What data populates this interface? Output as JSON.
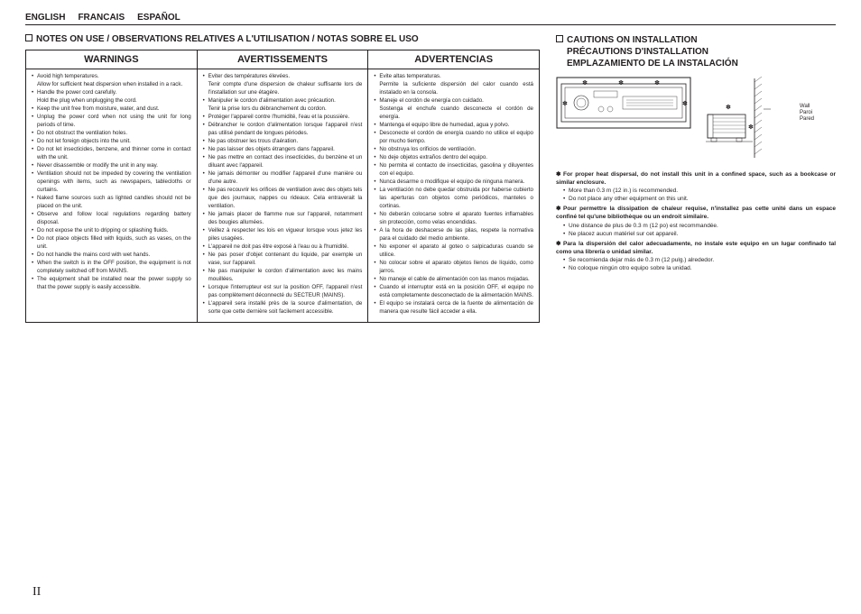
{
  "lang": {
    "en": "ENGLISH",
    "fr": "FRANCAIS",
    "es": "ESPAÑOL"
  },
  "notes_title": "NOTES ON USE / OBSERVATIONS RELATIVES A L'UTILISATION / NOTAS SOBRE EL USO",
  "headers": {
    "en": "WARNINGS",
    "fr": "AVERTISSEMENTS",
    "es": "ADVERTENCIAS"
  },
  "warnings_en": [
    {
      "t": "Avoid high temperatures.",
      "s": "Allow for sufficient heat dispersion when installed in a rack."
    },
    {
      "t": "Handle the power cord carefully.",
      "s": "Hold the plug when unplugging the cord."
    },
    {
      "t": "Keep the unit free from moisture, water, and dust."
    },
    {
      "t": "Unplug the power cord when not using the unit for long periods of time."
    },
    {
      "t": "Do not obstruct the ventilation holes."
    },
    {
      "t": "Do not let foreign objects into the unit."
    },
    {
      "t": "Do not let insecticides, benzene, and thinner come in contact with the unit."
    },
    {
      "t": "Never disassemble or modify the unit in any way."
    },
    {
      "t": "Ventilation should not be impeded by covering the ventilation openings with items, such as newspapers, tablecloths or curtains."
    },
    {
      "t": "Naked flame sources such as lighted candles should not be placed on the unit."
    },
    {
      "t": "Observe and follow local regulations regarding battery disposal."
    },
    {
      "t": "Do not expose the unit to dripping or splashing fluids."
    },
    {
      "t": "Do not place objects filled with liquids, such as vases, on the unit."
    },
    {
      "t": "Do not handle the mains cord with wet hands."
    },
    {
      "t": "When the switch is in the OFF position, the equipment is not completely switched off from MAINS."
    },
    {
      "t": "The equipment shall be installed near the power supply so that the power supply is easily accessible."
    }
  ],
  "warnings_fr": [
    {
      "t": "Eviter des températures élevées.",
      "s": "Tenir compte d'une dispersion de chaleur suffisante lors de l'installation sur une étagère."
    },
    {
      "t": "Manipuler le cordon d'alimentation avec précaution.",
      "s": "Tenir la prise lors du débranchement du cordon."
    },
    {
      "t": "Protéger l'appareil contre l'humidité, l'eau et la poussière."
    },
    {
      "t": "Débrancher le cordon d'alimentation lorsque l'appareil n'est pas utilisé pendant de longues périodes."
    },
    {
      "t": "Ne pas obstruer les trous d'aération."
    },
    {
      "t": "Ne pas laisser des objets étrangers dans l'appareil."
    },
    {
      "t": "Ne pas mettre en contact des insecticides, du benzène et un diluant avec l'appareil."
    },
    {
      "t": "Ne jamais démonter ou modifier l'appareil d'une manière ou d'une autre."
    },
    {
      "t": "Ne pas recouvrir les orifices de ventilation avec des objets tels que des journaux, nappes ou rideaux. Cela entraverait la ventilation."
    },
    {
      "t": "Ne jamais placer de flamme nue sur l'appareil, notamment des bougies allumées."
    },
    {
      "t": "Veillez à respecter les lois en vigueur lorsque vous jetez les piles usagées."
    },
    {
      "t": "L'appareil ne doit pas être exposé à l'eau ou à l'humidité."
    },
    {
      "t": "Ne pas poser d'objet contenant du liquide, par exemple un vase, sur l'appareil."
    },
    {
      "t": "Ne pas manipuler le cordon d'alimentation avec les mains mouillées."
    },
    {
      "t": "Lorsque l'interrupteur est sur la position OFF, l'appareil n'est pas complètement déconnecté du SECTEUR (MAINS)."
    },
    {
      "t": "L'appareil sera installé près de la source d'alimentation, de sorte que cette dernière soit facilement accessible."
    }
  ],
  "warnings_es": [
    {
      "t": "Evite altas temperaturas.",
      "s": "Permite la suficiente dispersión del calor cuando está instalado en la consola."
    },
    {
      "t": "Maneje el cordón de energía con cuidado.",
      "s": "Sostenga el enchufe cuando desconecte el cordón de energía."
    },
    {
      "t": "Mantenga el equipo libre de humedad, agua y polvo."
    },
    {
      "t": "Desconecte el cordón de energía cuando no utilice el equipo por mucho tiempo."
    },
    {
      "t": "No obstruya los orificios de ventilación."
    },
    {
      "t": "No deje objetos extraños dentro del equipo."
    },
    {
      "t": "No permita el contacto de insecticidas, gasolina y diluyentes con el equipo."
    },
    {
      "t": "Nunca desarme o modifique el equipo de ninguna manera."
    },
    {
      "t": "La ventilación no debe quedar obstruida por haberse cubierto las aperturas con objetos como periódicos, manteles o cortinas."
    },
    {
      "t": "No deberán colocarse sobre el aparato fuentes inflamables sin protección, como velas encendidas."
    },
    {
      "t": "A la hora de deshacerse de las pilas, respete la normativa para el cuidado del medio ambiente."
    },
    {
      "t": "No exponer el aparato al goteo o salpicaduras cuando se utilice."
    },
    {
      "t": "No colocar sobre el aparato objetos llenos de líquido, como jarros."
    },
    {
      "t": "No maneje el cable de alimentación con las manos mojadas."
    },
    {
      "t": "Cuando el interruptor está en la posición OFF, el equipo no está completamente desconectado de la alimentación MAINS."
    },
    {
      "t": "El equipo se instalará cerca de la fuente de alimentación de manera que resulte fácil acceder a ella."
    }
  ],
  "cautions_title": {
    "l1": "CAUTIONS ON INSTALLATION",
    "l2": "PRÉCAUTIONS D'INSTALLATION",
    "l3": "EMPLAZAMIENTO DE LA INSTALACIÓN"
  },
  "wall": {
    "en": "Wall",
    "fr": "Paroi",
    "es": "Pared"
  },
  "right": {
    "en_hd": "For proper heat dispersal, do not install this unit in a confined space, such as a bookcase or similar enclosure.",
    "en_b1": "More than 0.3 m (12 in.) is recommended.",
    "en_b2": "Do not place any other equipment on this unit.",
    "fr_hd": "Pour permettre la dissipation de chaleur requise, n'installez pas cette unité dans un espace confiné tel qu'une bibliothèque ou un endroit similaire.",
    "fr_b1": "Une distance de plus de 0.3 m (12 po) est recommandée.",
    "fr_b2": "Ne placez aucun matériel sur cet appareil.",
    "es_hd": "Para la dispersión del calor adecuadamente, no instale este equipo en un lugar confinado tal como una librería o unidad similar.",
    "es_b1": "Se recomienda dejar más de 0.3 m (12 pulg.) alrededor.",
    "es_b2": "No coloque ningún otro equipo sobre la unidad."
  },
  "page": "II",
  "colors": {
    "text": "#231f20",
    "border": "#231f20",
    "bg": "#ffffff"
  }
}
